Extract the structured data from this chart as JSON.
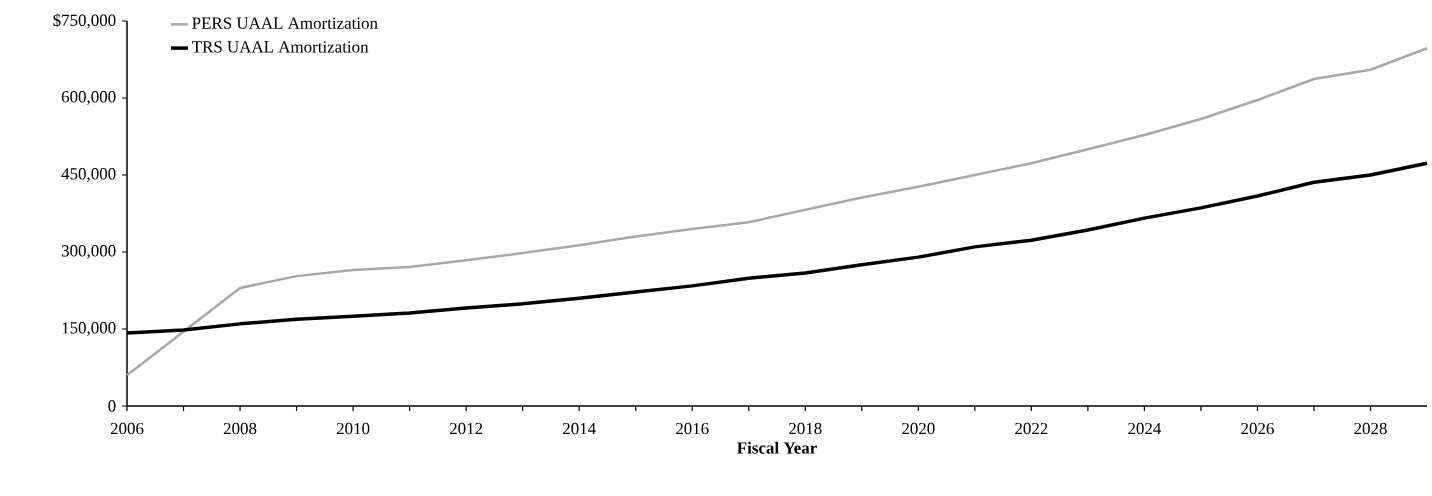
{
  "chart_data": {
    "type": "line",
    "xlabel": "Fiscal Year",
    "x": [
      2006,
      2007,
      2008,
      2009,
      2010,
      2011,
      2012,
      2013,
      2014,
      2015,
      2016,
      2017,
      2018,
      2019,
      2020,
      2021,
      2022,
      2023,
      2024,
      2025,
      2026,
      2027,
      2028,
      2029
    ],
    "series": [
      {
        "name": "PERS UAAL Amortization",
        "color": "#a8a8a8",
        "values": [
          60000,
          145000,
          230000,
          253000,
          265000,
          271000,
          284000,
          298000,
          313000,
          330000,
          345000,
          358000,
          382000,
          406000,
          427000,
          450000,
          473000,
          500000,
          528000,
          559000,
          596000,
          637000,
          655000,
          697000
        ]
      },
      {
        "name": "TRS UAAL Amortization",
        "color": "#000000",
        "values": [
          142000,
          148000,
          160000,
          169000,
          175000,
          181000,
          191000,
          199000,
          210000,
          222000,
          234000,
          249000,
          259000,
          275000,
          290000,
          310000,
          323000,
          343000,
          366000,
          386000,
          409000,
          436000,
          450000,
          473000
        ]
      }
    ],
    "xlim": [
      2006,
      2029
    ],
    "ylim": [
      0,
      750000
    ],
    "xticks": [
      2006,
      {
        "value": 2007,
        "label": null
      },
      2008,
      {
        "value": 2009,
        "label": null
      },
      2010,
      {
        "value": 2011,
        "label": null
      },
      2012,
      {
        "value": 2013,
        "label": null
      },
      2014,
      {
        "value": 2015,
        "label": null
      },
      2016,
      {
        "value": 2017,
        "label": null
      },
      2018,
      {
        "value": 2019,
        "label": null
      },
      2020,
      {
        "value": 2021,
        "label": null
      },
      2022,
      {
        "value": 2023,
        "label": null
      },
      2024,
      {
        "value": 2025,
        "label": null
      },
      2026,
      {
        "value": 2027,
        "label": null
      },
      2028
    ],
    "yticks": [
      {
        "value": 0,
        "label": "0"
      },
      {
        "value": 150000,
        "label": "150,000"
      },
      {
        "value": 300000,
        "label": "300,000"
      },
      {
        "value": 450000,
        "label": "450,000"
      },
      {
        "value": 600000,
        "label": "600,000"
      },
      {
        "value": 750000,
        "label": "$750,000"
      }
    ],
    "legend": "top left",
    "marker": "none",
    "line_style": "solid",
    "grid": false
  }
}
